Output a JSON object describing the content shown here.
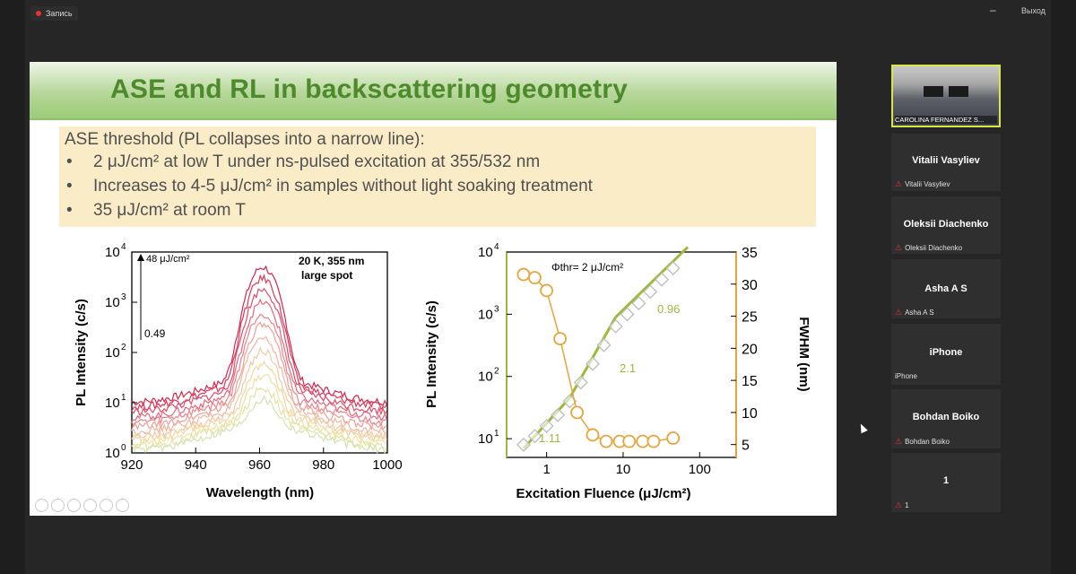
{
  "recording_label": "Запись",
  "window": {
    "minimize": "–",
    "exit_label": "Выход"
  },
  "slide": {
    "title": "ASE and RL in backscattering geometry",
    "bullet_header": "ASE threshold (PL collapses into a narrow line):",
    "bullets": [
      "2 μJ/cm² at low T under ns-pulsed excitation at 355/532 nm",
      "Increases to 4-5 μJ/cm² in samples without light soaking treatment",
      "35 μJ/cm² at room T"
    ]
  },
  "participants": {
    "video_tile": {
      "name": "CAROLINA FERNANDEZ S..."
    },
    "tiles": [
      {
        "name": "Vitalii Vasyliev",
        "sub": "Vitalii Vasyliev",
        "muted": true
      },
      {
        "name": "Oleksii Diachenko",
        "sub": "Oleksii Diachenko",
        "muted": true
      },
      {
        "name": "Asha A S",
        "sub": "Asha A S",
        "muted": true
      },
      {
        "name": "iPhone",
        "sub": "iPhone",
        "muted": false
      },
      {
        "name": "Bohdan Boiko",
        "sub": "Bohdan Boiko",
        "muted": true
      },
      {
        "name": "1",
        "sub": "1",
        "muted": true
      }
    ]
  },
  "chart_data": [
    {
      "type": "line",
      "xlabel": "Wavelength (nm)",
      "ylabel": "PL Intensity (c/s)",
      "xlim": [
        920,
        1000
      ],
      "ylim": [
        1,
        10000
      ],
      "y_scale": "log",
      "x_ticks": [
        "920",
        "940",
        "960",
        "980",
        "1000"
      ],
      "y_ticks": [
        "10",
        "10",
        "10",
        "10",
        "10"
      ],
      "y_tick_exponents": [
        "0",
        "1",
        "2",
        "3",
        "4"
      ],
      "annotations": {
        "top_fluence": "48 μJ/cm²",
        "bottom_fluence": "0.49",
        "condition_1": "20 K, 355 nm",
        "condition_2": "large spot"
      },
      "peak_x": 961,
      "peak_values": [
        5000,
        3000,
        1800,
        1000,
        600,
        350,
        200,
        110,
        60,
        35,
        20,
        12
      ],
      "base_values": [
        10,
        8,
        6.5,
        5,
        4,
        3.2,
        2.6,
        2.1,
        1.8,
        1.5,
        1.3,
        1.1
      ],
      "colors": [
        "#d4264b",
        "#d9385a",
        "#de4d6a",
        "#e3677b",
        "#e8838c",
        "#ec9f98",
        "#efb7a1",
        "#f1c9a4",
        "#f2d6a2",
        "#efdfa0",
        "#e3e3a4",
        "#d3e3b0"
      ]
    },
    {
      "type": "scatter",
      "xlabel": "Excitation Fluence (μJ/cm²)",
      "ylabel": "PL Intensity (c/s)",
      "y2label": "FWHM (nm)",
      "x_scale": "log",
      "xlim": [
        0.3,
        300
      ],
      "ylim": [
        5,
        10000
      ],
      "y2lim": [
        3,
        35
      ],
      "x_ticks": [
        "1",
        "10",
        "100"
      ],
      "y_ticks": [
        "10",
        "10",
        "10",
        "10"
      ],
      "y_tick_exponents": [
        "1",
        "2",
        "3",
        "4"
      ],
      "y2_ticks": [
        "5",
        "10",
        "15",
        "20",
        "25",
        "30",
        "35"
      ],
      "annotations": {
        "threshold": "Φthr= 2 μJ/cm²",
        "slope_1": "1.11",
        "slope_2": "2.1",
        "slope_3": "0.96"
      },
      "series": [
        {
          "name": "PL intensity",
          "axis": "left",
          "color": "#9cba3a",
          "x": [
            0.5,
            0.7,
            1.0,
            1.4,
            2.0,
            2.8,
            4.0,
            5.6,
            8.0,
            11.3,
            16,
            22.6,
            32,
            45
          ],
          "y": [
            8,
            11,
            16,
            24,
            40,
            80,
            160,
            320,
            640,
            1000,
            1500,
            2300,
            3600,
            5500
          ]
        },
        {
          "name": "FWHM",
          "axis": "right",
          "color": "#e6a43a",
          "x": [
            0.5,
            0.7,
            1.0,
            1.5,
            2.5,
            4.0,
            6.0,
            9.0,
            12.0,
            18.0,
            25.0,
            45.0
          ],
          "y": [
            31.5,
            31,
            29,
            21.5,
            10,
            6.5,
            5.5,
            5.5,
            5.5,
            5.5,
            5.5,
            6
          ]
        }
      ],
      "fit_lines": [
        {
          "x": [
            0.5,
            2.0
          ],
          "y": [
            7,
            45
          ]
        },
        {
          "x": [
            2.0,
            8.0
          ],
          "y": [
            45,
            900
          ]
        },
        {
          "x": [
            8.0,
            70.0
          ],
          "y": [
            900,
            12000
          ]
        }
      ]
    }
  ]
}
